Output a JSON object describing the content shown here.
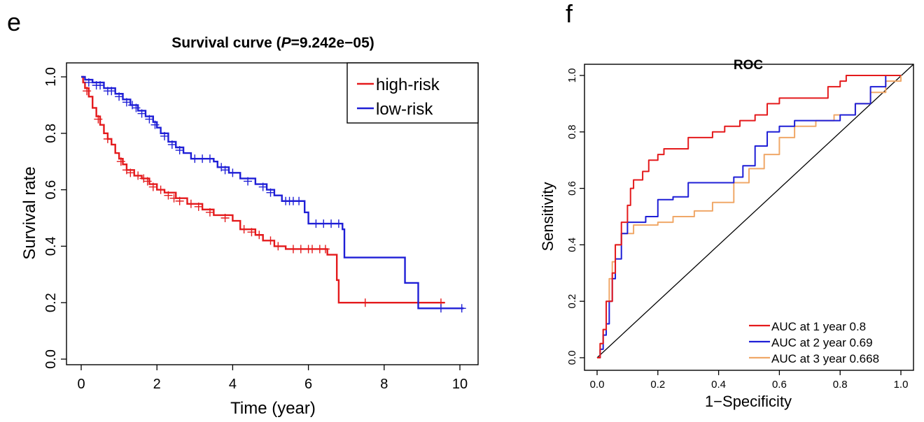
{
  "chart_data": [
    {
      "panel": "e",
      "type": "line",
      "title_prefix": "Survival curve (",
      "title_p": "P",
      "title_suffix": "=9.242e−05)",
      "xlabel": "Time (year)",
      "ylabel": "Survival rate",
      "xlim": [
        0,
        10
      ],
      "ylim": [
        0,
        1
      ],
      "xticks": [
        0,
        2,
        4,
        6,
        8,
        10
      ],
      "xtick_labels": [
        "0",
        "2",
        "4",
        "6",
        "8",
        "10"
      ],
      "yticks": [
        0,
        0.2,
        0.4,
        0.6,
        0.8,
        1.0
      ],
      "ytick_labels": [
        "0.0",
        "0.2",
        "0.4",
        "0.6",
        "0.8",
        "1.0"
      ],
      "legend_position": "top-right",
      "series": [
        {
          "name": "high-risk",
          "color": "#e41a1c",
          "step": [
            [
              0,
              1.0
            ],
            [
              0.05,
              0.98
            ],
            [
              0.1,
              0.96
            ],
            [
              0.2,
              0.93
            ],
            [
              0.3,
              0.89
            ],
            [
              0.4,
              0.86
            ],
            [
              0.5,
              0.83
            ],
            [
              0.6,
              0.8
            ],
            [
              0.7,
              0.78
            ],
            [
              0.8,
              0.76
            ],
            [
              0.9,
              0.73
            ],
            [
              1.0,
              0.71
            ],
            [
              1.1,
              0.69
            ],
            [
              1.2,
              0.67
            ],
            [
              1.4,
              0.65
            ],
            [
              1.6,
              0.64
            ],
            [
              1.8,
              0.62
            ],
            [
              2.0,
              0.6
            ],
            [
              2.2,
              0.59
            ],
            [
              2.5,
              0.57
            ],
            [
              2.8,
              0.55
            ],
            [
              3.2,
              0.53
            ],
            [
              3.5,
              0.51
            ],
            [
              4.0,
              0.49
            ],
            [
              4.2,
              0.46
            ],
            [
              4.6,
              0.44
            ],
            [
              4.8,
              0.42
            ],
            [
              5.1,
              0.4
            ],
            [
              5.4,
              0.39
            ],
            [
              6.5,
              0.37
            ],
            [
              6.75,
              0.28
            ],
            [
              6.8,
              0.2
            ],
            [
              9.6,
              0.2
            ]
          ],
          "censor": [
            [
              0.15,
              0.95
            ],
            [
              0.45,
              0.85
            ],
            [
              0.7,
              0.78
            ],
            [
              1.05,
              0.7
            ],
            [
              1.2,
              0.67
            ],
            [
              1.3,
              0.66
            ],
            [
              1.5,
              0.65
            ],
            [
              1.65,
              0.64
            ],
            [
              1.75,
              0.63
            ],
            [
              1.9,
              0.61
            ],
            [
              2.1,
              0.6
            ],
            [
              2.3,
              0.58
            ],
            [
              2.45,
              0.57
            ],
            [
              2.6,
              0.56
            ],
            [
              2.9,
              0.55
            ],
            [
              3.1,
              0.54
            ],
            [
              3.4,
              0.52
            ],
            [
              3.8,
              0.5
            ],
            [
              4.3,
              0.46
            ],
            [
              4.5,
              0.45
            ],
            [
              4.7,
              0.44
            ],
            [
              5.0,
              0.42
            ],
            [
              5.2,
              0.4
            ],
            [
              5.6,
              0.39
            ],
            [
              5.8,
              0.39
            ],
            [
              6.0,
              0.39
            ],
            [
              6.1,
              0.39
            ],
            [
              6.3,
              0.39
            ],
            [
              6.45,
              0.39
            ],
            [
              7.5,
              0.2
            ],
            [
              9.5,
              0.2
            ]
          ]
        },
        {
          "name": "low-risk",
          "color": "#1f1fd6",
          "step": [
            [
              0,
              1.0
            ],
            [
              0.1,
              0.99
            ],
            [
              0.3,
              0.98
            ],
            [
              0.6,
              0.96
            ],
            [
              0.9,
              0.94
            ],
            [
              1.1,
              0.92
            ],
            [
              1.3,
              0.9
            ],
            [
              1.5,
              0.88
            ],
            [
              1.7,
              0.86
            ],
            [
              1.9,
              0.84
            ],
            [
              2.0,
              0.82
            ],
            [
              2.1,
              0.8
            ],
            [
              2.3,
              0.77
            ],
            [
              2.5,
              0.75
            ],
            [
              2.7,
              0.73
            ],
            [
              2.9,
              0.71
            ],
            [
              3.5,
              0.7
            ],
            [
              3.6,
              0.68
            ],
            [
              3.9,
              0.66
            ],
            [
              4.2,
              0.64
            ],
            [
              4.6,
              0.62
            ],
            [
              4.9,
              0.6
            ],
            [
              5.1,
              0.58
            ],
            [
              5.3,
              0.56
            ],
            [
              5.9,
              0.52
            ],
            [
              6.0,
              0.48
            ],
            [
              6.9,
              0.46
            ],
            [
              6.95,
              0.36
            ],
            [
              8.55,
              0.27
            ],
            [
              8.9,
              0.18
            ],
            [
              10.1,
              0.18
            ]
          ],
          "censor": [
            [
              0.2,
              0.98
            ],
            [
              0.4,
              0.97
            ],
            [
              0.5,
              0.97
            ],
            [
              0.7,
              0.95
            ],
            [
              0.8,
              0.95
            ],
            [
              1.0,
              0.93
            ],
            [
              1.2,
              0.91
            ],
            [
              1.35,
              0.9
            ],
            [
              1.45,
              0.89
            ],
            [
              1.6,
              0.87
            ],
            [
              1.8,
              0.85
            ],
            [
              1.95,
              0.83
            ],
            [
              2.2,
              0.79
            ],
            [
              2.4,
              0.76
            ],
            [
              2.6,
              0.74
            ],
            [
              3.0,
              0.71
            ],
            [
              3.2,
              0.71
            ],
            [
              3.4,
              0.71
            ],
            [
              3.7,
              0.68
            ],
            [
              3.8,
              0.67
            ],
            [
              4.0,
              0.66
            ],
            [
              4.4,
              0.63
            ],
            [
              4.8,
              0.61
            ],
            [
              5.0,
              0.59
            ],
            [
              5.4,
              0.56
            ],
            [
              5.5,
              0.56
            ],
            [
              5.6,
              0.56
            ],
            [
              5.75,
              0.56
            ],
            [
              6.2,
              0.48
            ],
            [
              6.4,
              0.48
            ],
            [
              6.6,
              0.48
            ],
            [
              6.8,
              0.48
            ],
            [
              9.5,
              0.18
            ],
            [
              10.05,
              0.18
            ]
          ]
        }
      ]
    },
    {
      "panel": "f",
      "type": "line",
      "title": "ROC",
      "xlabel": "1−Specificity",
      "ylabel": "Sensitivity",
      "xlim": [
        0,
        1
      ],
      "ylim": [
        0,
        1
      ],
      "xticks": [
        0,
        0.2,
        0.4,
        0.6,
        0.8,
        1.0
      ],
      "xtick_labels": [
        "0.0",
        "0.2",
        "0.4",
        "0.6",
        "0.8",
        "1.0"
      ],
      "yticks": [
        0,
        0.2,
        0.4,
        0.6,
        0.8,
        1.0
      ],
      "ytick_labels": [
        "0.0",
        "0.2",
        "0.4",
        "0.6",
        "0.8",
        "1.0"
      ],
      "legend_position": "bottom-right",
      "series": [
        {
          "name": "AUC at 1 year 0.8",
          "color": "#e41a1c",
          "points": [
            [
              0,
              0
            ],
            [
              0.01,
              0.05
            ],
            [
              0.02,
              0.1
            ],
            [
              0.03,
              0.2
            ],
            [
              0.05,
              0.3
            ],
            [
              0.06,
              0.4
            ],
            [
              0.08,
              0.48
            ],
            [
              0.1,
              0.54
            ],
            [
              0.11,
              0.6
            ],
            [
              0.12,
              0.63
            ],
            [
              0.15,
              0.66
            ],
            [
              0.17,
              0.7
            ],
            [
              0.2,
              0.72
            ],
            [
              0.22,
              0.74
            ],
            [
              0.27,
              0.74
            ],
            [
              0.3,
              0.78
            ],
            [
              0.35,
              0.78
            ],
            [
              0.38,
              0.8
            ],
            [
              0.42,
              0.82
            ],
            [
              0.47,
              0.84
            ],
            [
              0.52,
              0.86
            ],
            [
              0.56,
              0.9
            ],
            [
              0.6,
              0.92
            ],
            [
              0.7,
              0.92
            ],
            [
              0.76,
              0.96
            ],
            [
              0.8,
              0.98
            ],
            [
              0.82,
              1.0
            ],
            [
              1.0,
              1.0
            ]
          ]
        },
        {
          "name": "AUC at 2 year 0.69",
          "color": "#1f1fd6",
          "points": [
            [
              0,
              0
            ],
            [
              0.01,
              0.03
            ],
            [
              0.02,
              0.08
            ],
            [
              0.03,
              0.12
            ],
            [
              0.04,
              0.2
            ],
            [
              0.05,
              0.28
            ],
            [
              0.06,
              0.35
            ],
            [
              0.08,
              0.44
            ],
            [
              0.1,
              0.48
            ],
            [
              0.14,
              0.48
            ],
            [
              0.16,
              0.5
            ],
            [
              0.2,
              0.56
            ],
            [
              0.25,
              0.57
            ],
            [
              0.3,
              0.62
            ],
            [
              0.38,
              0.62
            ],
            [
              0.45,
              0.64
            ],
            [
              0.48,
              0.68
            ],
            [
              0.52,
              0.75
            ],
            [
              0.56,
              0.8
            ],
            [
              0.6,
              0.82
            ],
            [
              0.65,
              0.84
            ],
            [
              0.75,
              0.84
            ],
            [
              0.8,
              0.86
            ],
            [
              0.85,
              0.9
            ],
            [
              0.9,
              0.96
            ],
            [
              0.95,
              1.0
            ],
            [
              1.0,
              1.0
            ]
          ]
        },
        {
          "name": "AUC at 3 year 0.668",
          "color": "#f0a868",
          "points": [
            [
              0,
              0
            ],
            [
              0.01,
              0.05
            ],
            [
              0.02,
              0.1
            ],
            [
              0.03,
              0.2
            ],
            [
              0.04,
              0.28
            ],
            [
              0.05,
              0.34
            ],
            [
              0.06,
              0.4
            ],
            [
              0.08,
              0.44
            ],
            [
              0.12,
              0.47
            ],
            [
              0.2,
              0.48
            ],
            [
              0.25,
              0.5
            ],
            [
              0.32,
              0.52
            ],
            [
              0.38,
              0.55
            ],
            [
              0.45,
              0.62
            ],
            [
              0.5,
              0.67
            ],
            [
              0.55,
              0.72
            ],
            [
              0.6,
              0.78
            ],
            [
              0.65,
              0.82
            ],
            [
              0.72,
              0.84
            ],
            [
              0.78,
              0.86
            ],
            [
              0.85,
              0.9
            ],
            [
              0.9,
              0.94
            ],
            [
              0.95,
              0.98
            ],
            [
              1.0,
              1.0
            ]
          ]
        }
      ]
    }
  ]
}
